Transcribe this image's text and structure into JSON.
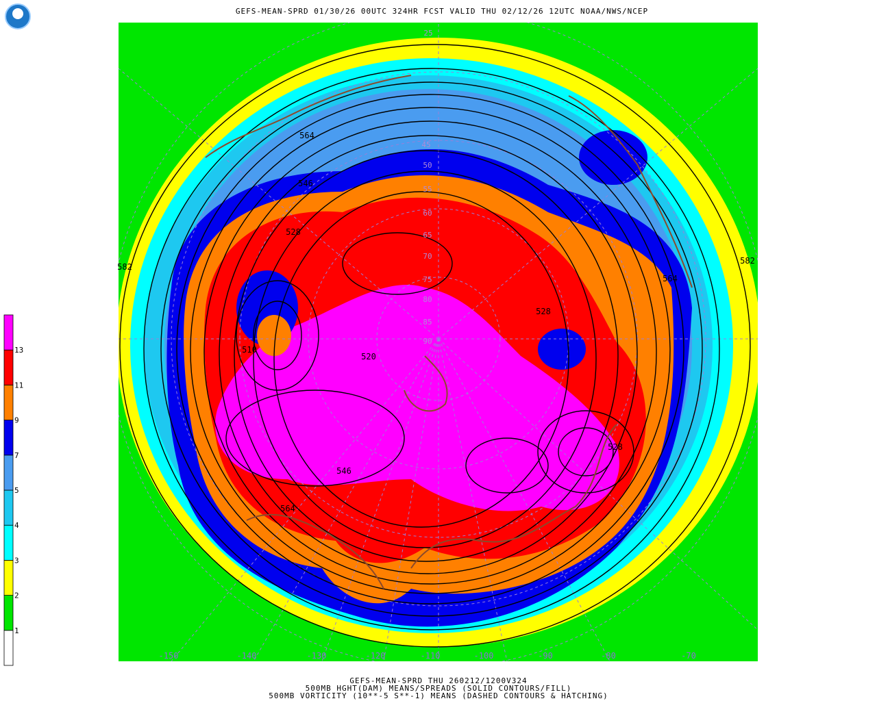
{
  "header": {
    "title": "GEFS-MEAN-SPRD 01/30/26 00UTC 324HR FCST VALID THU 02/12/26 12UTC NOAA/NWS/NCEP"
  },
  "legend": {
    "levels": [
      1,
      2,
      3,
      4,
      5,
      7,
      9,
      11,
      13
    ],
    "colors": [
      "#ffffff",
      "#00e600",
      "#ffff00",
      "#00ffff",
      "#1ec8f0",
      "#4a9cf0",
      "#0000ee",
      "#ff8000",
      "#ff0000",
      "#ff00ff"
    ]
  },
  "contour_labels": [
    564,
    546,
    528,
    520,
    510,
    546,
    564,
    528,
    528,
    582,
    582,
    564
  ],
  "latitude_labels": [
    25,
    45,
    50,
    55,
    60,
    65,
    70,
    75,
    80,
    85,
    90
  ],
  "longitude_labels": [
    -150,
    -140,
    -130,
    -120,
    -110,
    -100,
    -90,
    -80,
    -70
  ],
  "footer": [
    "GEFS-MEAN-SPRD THU 260212/1200V324",
    "500MB HGHT(DAM) MEANS/SPREADS (SOLID CONTOURS/FILL)",
    "500MB VORTICITY (10**-5 S**-1) MEANS (DASHED CONTOURS & HATCHING)"
  ]
}
